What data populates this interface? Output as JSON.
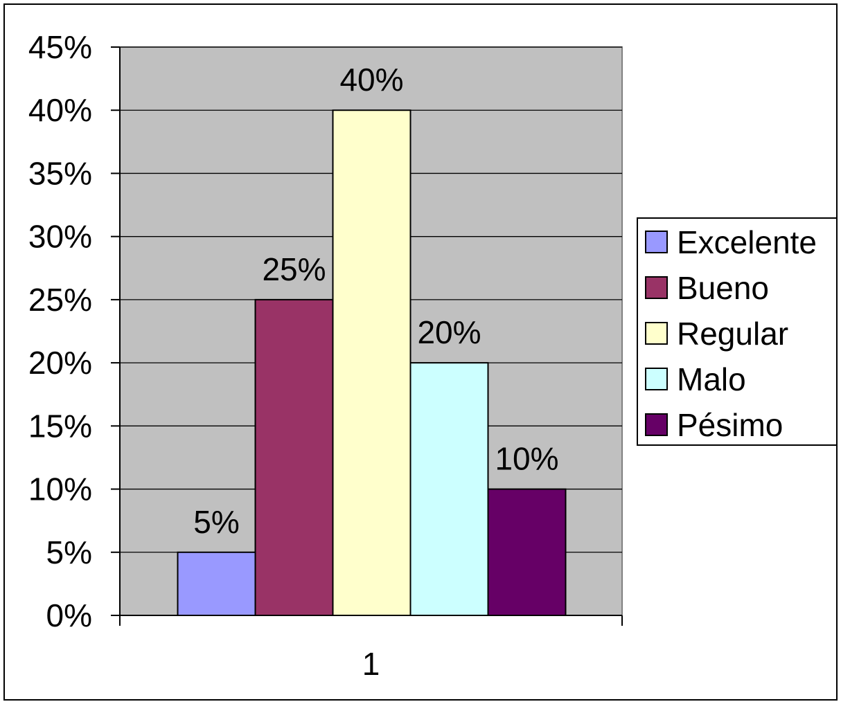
{
  "chart_data": {
    "type": "bar",
    "categories": [
      "1"
    ],
    "series": [
      {
        "name": "Excelente",
        "values": [
          5
        ],
        "color": "#9999ff",
        "label": "5%"
      },
      {
        "name": "Bueno",
        "values": [
          25
        ],
        "color": "#993366",
        "label": "25%"
      },
      {
        "name": "Regular",
        "values": [
          40
        ],
        "color": "#ffffcc",
        "label": "40%"
      },
      {
        "name": "Malo",
        "values": [
          20
        ],
        "color": "#ccffff",
        "label": "20%"
      },
      {
        "name": "Pésimo",
        "values": [
          10
        ],
        "color": "#660066",
        "label": "10%"
      }
    ],
    "yticks": [
      "0%",
      "5%",
      "10%",
      "15%",
      "20%",
      "25%",
      "30%",
      "35%",
      "40%",
      "45%"
    ],
    "ylim": [
      0,
      45
    ],
    "ytick_step": 5,
    "grid": true,
    "plot_background": "#c0c0c0",
    "legend_position": "right"
  }
}
